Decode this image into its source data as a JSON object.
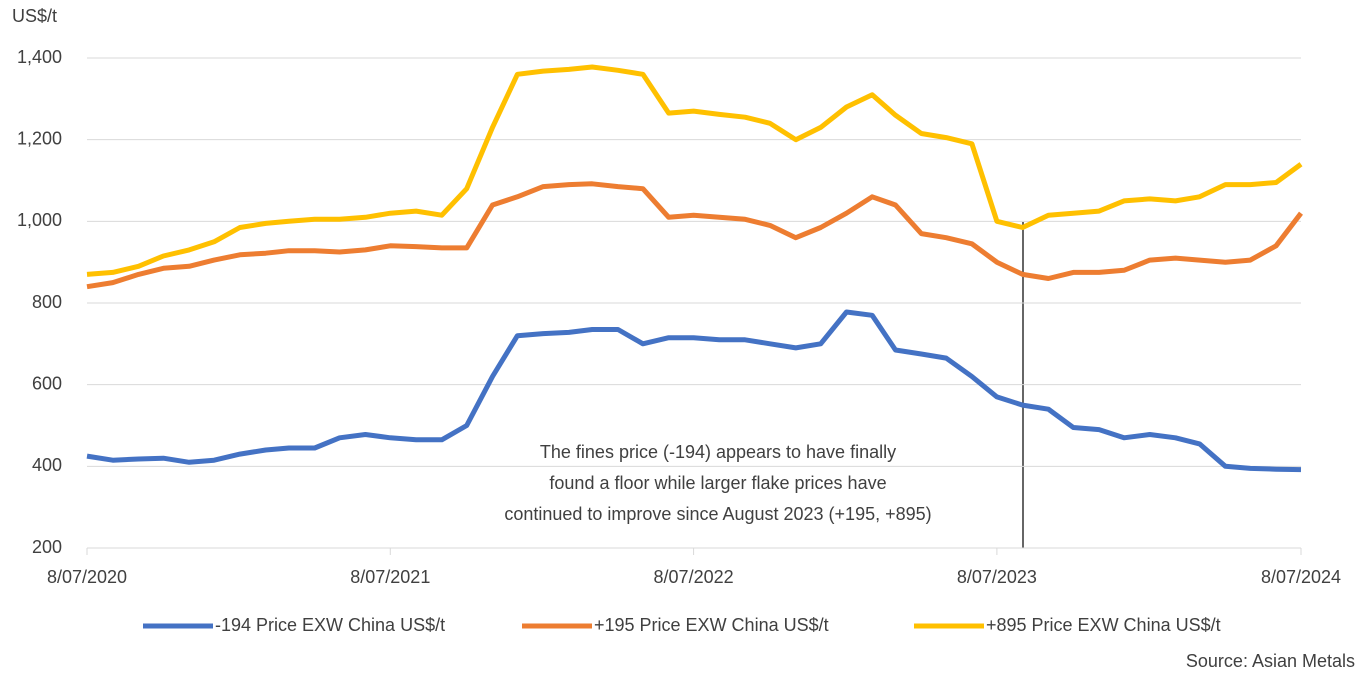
{
  "chart_data": {
    "type": "line",
    "y_label": "US$/t",
    "source": "Source: Asian Metals",
    "annotation": [
      "The fines price (-194) appears to have finally",
      "found a floor while larger flake prices have",
      "continued to improve since August 2023 (+195, +895)"
    ],
    "x": [
      "2020-07-08",
      "2020-08-08",
      "2020-09-08",
      "2020-10-08",
      "2020-11-08",
      "2020-12-08",
      "2021-01-08",
      "2021-02-08",
      "2021-03-08",
      "2021-04-08",
      "2021-05-08",
      "2021-06-08",
      "2021-07-08",
      "2021-08-08",
      "2021-09-08",
      "2021-10-08",
      "2021-11-08",
      "2021-12-08",
      "2022-01-08",
      "2022-02-08",
      "2022-03-08",
      "2022-04-08",
      "2022-05-08",
      "2022-06-08",
      "2022-07-08",
      "2022-08-08",
      "2022-09-08",
      "2022-10-08",
      "2022-11-08",
      "2022-12-08",
      "2023-01-08",
      "2023-02-08",
      "2023-03-08",
      "2023-04-08",
      "2023-05-08",
      "2023-06-08",
      "2023-07-08",
      "2023-08-08",
      "2023-09-08",
      "2023-10-08",
      "2023-11-08",
      "2023-12-08",
      "2024-01-08",
      "2024-02-08",
      "2024-03-08",
      "2024-04-08",
      "2024-05-08",
      "2024-06-08",
      "2024-07-08"
    ],
    "series": [
      {
        "name": "-194 Price EXW China US$/t",
        "color": "#4472c4",
        "values": [
          425,
          415,
          418,
          420,
          410,
          415,
          430,
          440,
          445,
          445,
          470,
          478,
          470,
          465,
          465,
          500,
          620,
          720,
          725,
          728,
          735,
          735,
          700,
          715,
          715,
          710,
          710,
          700,
          690,
          700,
          778,
          770,
          685,
          675,
          665,
          620,
          570,
          550,
          540,
          495,
          490,
          470,
          478,
          470,
          455,
          400,
          395,
          393,
          392
        ]
      },
      {
        "name": "+195 Price EXW China US$/t",
        "color": "#ed7d31",
        "values": [
          840,
          850,
          870,
          885,
          890,
          905,
          918,
          922,
          928,
          928,
          925,
          930,
          940,
          938,
          935,
          935,
          1040,
          1060,
          1085,
          1090,
          1092,
          1085,
          1080,
          1010,
          1015,
          1010,
          1005,
          990,
          960,
          985,
          1020,
          1060,
          1040,
          970,
          960,
          945,
          900,
          870,
          860,
          875,
          875,
          880,
          905,
          910,
          905,
          900,
          905,
          940,
          1020
        ]
      },
      {
        "name": "+895 Price EXW China US$/t",
        "color": "#ffc000",
        "values": [
          870,
          875,
          890,
          915,
          930,
          950,
          985,
          995,
          1000,
          1005,
          1005,
          1010,
          1020,
          1025,
          1015,
          1080,
          1230,
          1360,
          1368,
          1372,
          1378,
          1370,
          1360,
          1265,
          1270,
          1262,
          1255,
          1240,
          1200,
          1230,
          1280,
          1310,
          1260,
          1215,
          1205,
          1190,
          1000,
          985,
          1015,
          1020,
          1025,
          1050,
          1055,
          1050,
          1060,
          1090,
          1090,
          1095,
          1140
        ]
      }
    ],
    "xlim": [
      "2020-07-08",
      "2024-07-08"
    ],
    "xticks": [
      {
        "value": "2020-07-08",
        "label": "8/07/2020"
      },
      {
        "value": "2021-07-08",
        "label": "8/07/2021"
      },
      {
        "value": "2022-07-08",
        "label": "8/07/2022"
      },
      {
        "value": "2023-07-08",
        "label": "8/07/2023"
      },
      {
        "value": "2024-07-08",
        "label": "8/07/2024"
      }
    ],
    "ylim": [
      200,
      1400
    ],
    "yticks": [
      200,
      400,
      600,
      800,
      {
        "value": 1000,
        "label": "1,000"
      },
      {
        "value": 1200,
        "label": "1,200"
      },
      {
        "value": 1400,
        "label": "1,400"
      }
    ],
    "grid": true,
    "legend": "bottom"
  }
}
